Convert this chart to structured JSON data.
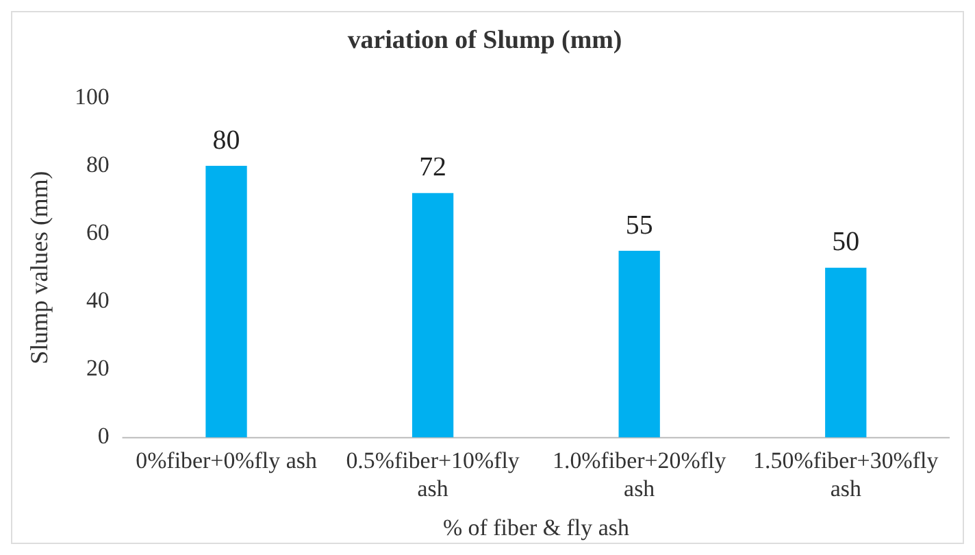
{
  "chart_data": {
    "type": "bar",
    "title": "variation of Slump (mm)",
    "xlabel": "% of fiber & fly ash",
    "ylabel": "Slump values (mm)",
    "categories": [
      "0%fiber+0%fly ash",
      "0.5%fiber+10%fly ash",
      "1.0%fiber+20%fly ash",
      "1.50%fiber+30%fly ash"
    ],
    "values": [
      80,
      72,
      55,
      50
    ],
    "color": "#00b0f0",
    "ylim": [
      0,
      100
    ],
    "yticks": [
      0,
      20,
      40,
      60,
      80,
      100
    ],
    "grid": false,
    "legend": false,
    "data_labels": true
  }
}
